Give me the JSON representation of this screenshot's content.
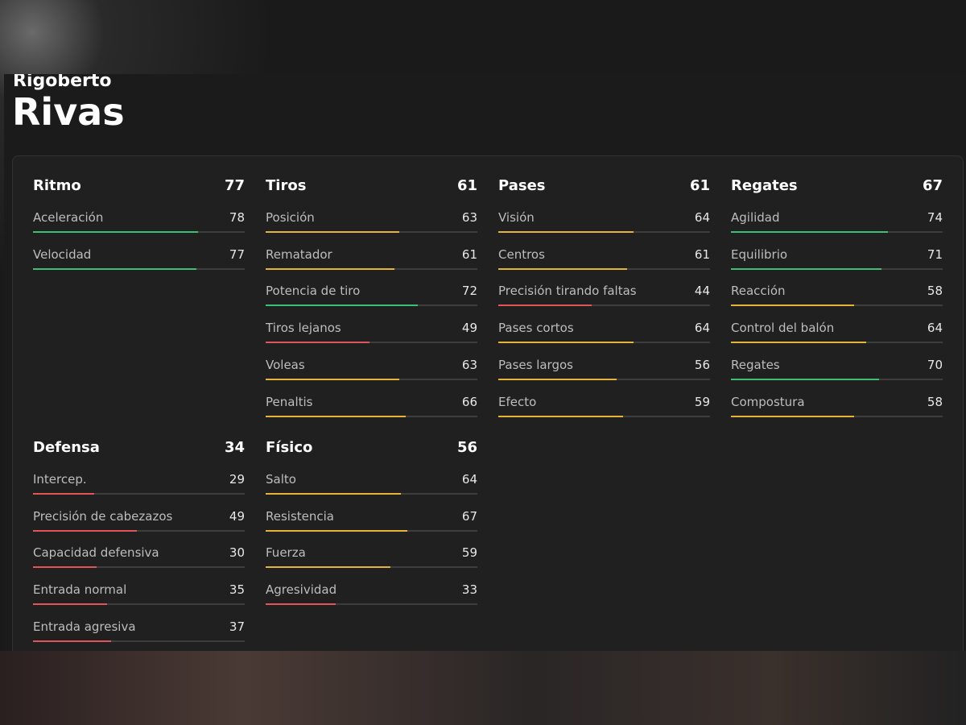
{
  "player": {
    "first_name": "Rigoberto",
    "last_name": "Rivas"
  },
  "bar_range": [
    0,
    100
  ],
  "groups": [
    {
      "name": "Ritmo",
      "value": 77,
      "stats": [
        {
          "name": "Aceleración",
          "value": 78,
          "color": "#3fbf74"
        },
        {
          "name": "Velocidad",
          "value": 77,
          "color": "#3fbf74"
        }
      ]
    },
    {
      "name": "Tiros",
      "value": 61,
      "stats": [
        {
          "name": "Posición",
          "value": 63,
          "color": "#e6b33a"
        },
        {
          "name": "Rematador",
          "value": 61,
          "color": "#e6b33a"
        },
        {
          "name": "Potencia de tiro",
          "value": 72,
          "color": "#3fbf74"
        },
        {
          "name": "Tiros lejanos",
          "value": 49,
          "color": "#e0555a"
        },
        {
          "name": "Voleas",
          "value": 63,
          "color": "#e6b33a"
        },
        {
          "name": "Penaltis",
          "value": 66,
          "color": "#e6b33a"
        }
      ]
    },
    {
      "name": "Pases",
      "value": 61,
      "stats": [
        {
          "name": "Visión",
          "value": 64,
          "color": "#e6b33a"
        },
        {
          "name": "Centros",
          "value": 61,
          "color": "#e6b33a"
        },
        {
          "name": "Precisión tirando faltas",
          "value": 44,
          "color": "#e0555a"
        },
        {
          "name": "Pases cortos",
          "value": 64,
          "color": "#e6b33a"
        },
        {
          "name": "Pases largos",
          "value": 56,
          "color": "#e6b33a"
        },
        {
          "name": "Efecto",
          "value": 59,
          "color": "#e6b33a"
        }
      ]
    },
    {
      "name": "Regates",
      "value": 67,
      "stats": [
        {
          "name": "Agilidad",
          "value": 74,
          "color": "#3fbf74"
        },
        {
          "name": "Equilibrio",
          "value": 71,
          "color": "#3fbf74"
        },
        {
          "name": "Reacción",
          "value": 58,
          "color": "#e6b33a"
        },
        {
          "name": "Control del balón",
          "value": 64,
          "color": "#e6b33a"
        },
        {
          "name": "Regates",
          "value": 70,
          "color": "#3fbf74"
        },
        {
          "name": "Compostura",
          "value": 58,
          "color": "#e6b33a"
        }
      ]
    },
    {
      "name": "Defensa",
      "value": 34,
      "stats": [
        {
          "name": "Intercep.",
          "value": 29,
          "color": "#e0555a"
        },
        {
          "name": "Precisión de cabezazos",
          "value": 49,
          "color": "#e0555a"
        },
        {
          "name": "Capacidad defensiva",
          "value": 30,
          "color": "#e0555a"
        },
        {
          "name": "Entrada normal",
          "value": 35,
          "color": "#e0555a"
        },
        {
          "name": "Entrada agresiva",
          "value": 37,
          "color": "#e0555a"
        }
      ]
    },
    {
      "name": "Físico",
      "value": 56,
      "stats": [
        {
          "name": "Salto",
          "value": 64,
          "color": "#e6b33a"
        },
        {
          "name": "Resistencia",
          "value": 67,
          "color": "#e6b33a"
        },
        {
          "name": "Fuerza",
          "value": 59,
          "color": "#e6b33a"
        },
        {
          "name": "Agresividad",
          "value": 33,
          "color": "#e0555a"
        }
      ]
    }
  ]
}
